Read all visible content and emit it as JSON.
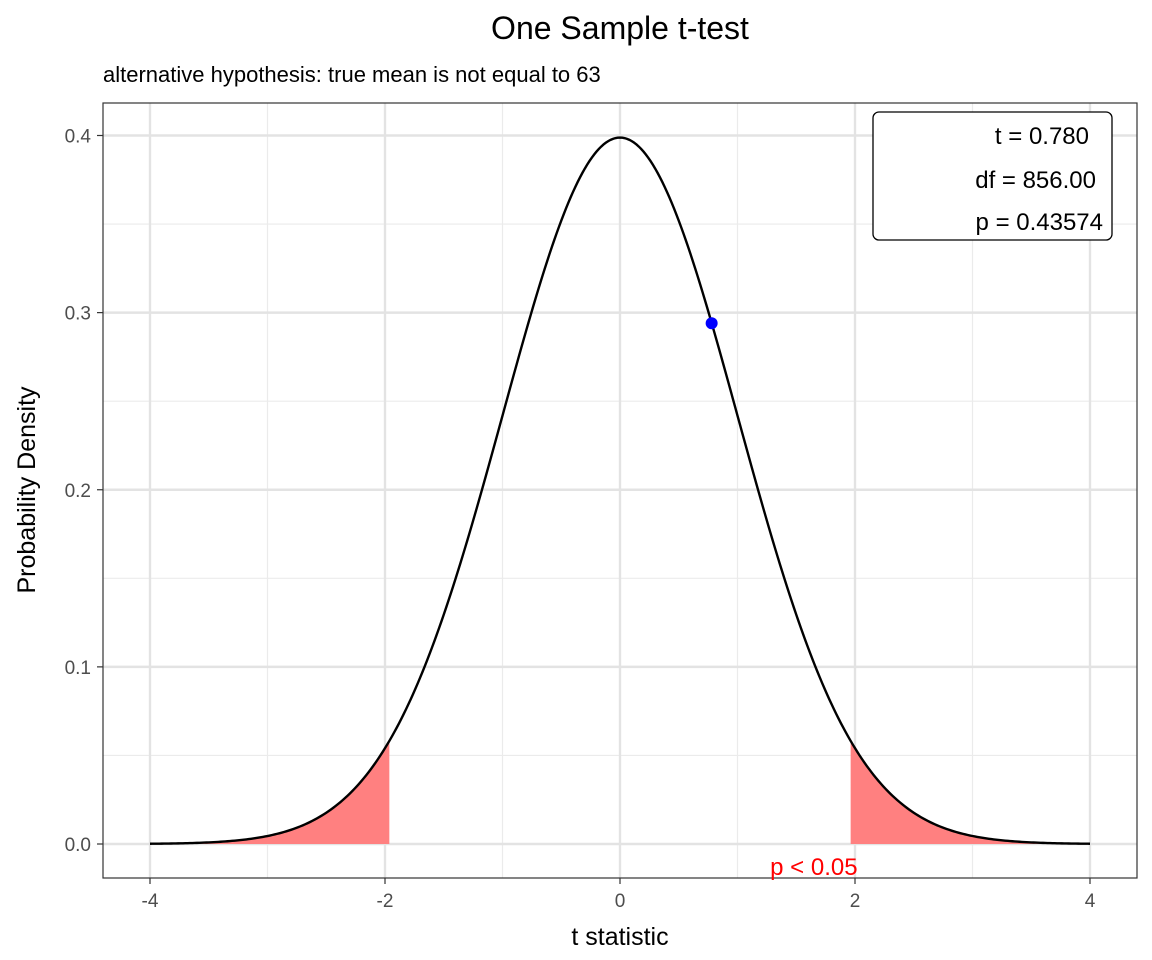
{
  "chart_data": {
    "type": "line",
    "title": "One Sample t-test",
    "subtitle": "alternative hypothesis: true mean is not equal to 63",
    "xlabel": "t statistic",
    "ylabel": "Probability Density",
    "xlim": [
      -4,
      4
    ],
    "ylim": [
      0,
      0.4
    ],
    "x_ticks": [
      -4,
      -2,
      0,
      2,
      4
    ],
    "x_tick_labels": [
      "-4",
      "-2",
      "0",
      "2",
      "4"
    ],
    "y_ticks": [
      0.0,
      0.1,
      0.2,
      0.3,
      0.4
    ],
    "y_tick_labels": [
      "0.0",
      "0.1",
      "0.2",
      "0.3",
      "0.4"
    ],
    "grid": true,
    "distribution": {
      "family": "t",
      "df": 856,
      "x_min": -4,
      "x_max": 4
    },
    "rejection_region": {
      "lower": -1.963,
      "upper": 1.963,
      "color": "#ff8080"
    },
    "observed_point": {
      "t": 0.78,
      "density": 0.294,
      "color": "#0000ff"
    },
    "stats_box": {
      "t_line": "t = 0.780",
      "df_line": "df = 856.00",
      "p_line": "p = 0.43574",
      "placement": "top-right"
    },
    "p_note": {
      "text": "p < 0.05",
      "color": "#ff0000",
      "x": 1.65
    }
  }
}
